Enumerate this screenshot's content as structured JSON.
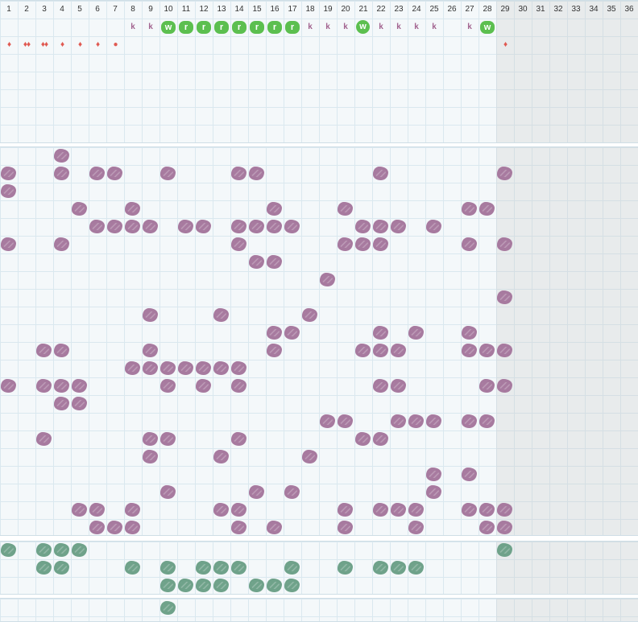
{
  "tracker": {
    "day_labels": [
      "1",
      "2",
      "3",
      "4",
      "5",
      "6",
      "7",
      "8",
      "9",
      "10",
      "11",
      "12",
      "13",
      "14",
      "15",
      "16",
      "17",
      "18",
      "19",
      "20",
      "21",
      "22",
      "23",
      "24",
      "25",
      "26",
      "27",
      "28",
      "29",
      "30",
      "31",
      "32",
      "33",
      "34",
      "35",
      "36"
    ],
    "current_day": 29,
    "marker_colors": {
      "symptom_purple": "#a77a9f",
      "habit_green": "#6fa28a",
      "flow_red": "#e05a52",
      "pill_green": "#5cbf4f",
      "k_text": "#a2638f"
    },
    "letter_row": [
      {
        "day": 8,
        "text": "k",
        "style": "k"
      },
      {
        "day": 9,
        "text": "k",
        "style": "k"
      },
      {
        "day": 10,
        "text": "w",
        "style": "pill"
      },
      {
        "day": 11,
        "text": "r",
        "style": "pill"
      },
      {
        "day": 12,
        "text": "r",
        "style": "pill"
      },
      {
        "day": 13,
        "text": "r",
        "style": "pill"
      },
      {
        "day": 14,
        "text": "r",
        "style": "pill"
      },
      {
        "day": 15,
        "text": "r",
        "style": "pill"
      },
      {
        "day": 16,
        "text": "r",
        "style": "pill"
      },
      {
        "day": 17,
        "text": "r",
        "style": "pill"
      },
      {
        "day": 18,
        "text": "k",
        "style": "k"
      },
      {
        "day": 19,
        "text": "k",
        "style": "k"
      },
      {
        "day": 20,
        "text": "k",
        "style": "k"
      },
      {
        "day": 21,
        "text": "w",
        "style": "pill-round"
      },
      {
        "day": 22,
        "text": "k",
        "style": "k"
      },
      {
        "day": 23,
        "text": "k",
        "style": "k"
      },
      {
        "day": 24,
        "text": "k",
        "style": "k"
      },
      {
        "day": 25,
        "text": "k",
        "style": "k"
      },
      {
        "day": 27,
        "text": "k",
        "style": "k"
      },
      {
        "day": 28,
        "text": "w",
        "style": "pill"
      }
    ],
    "flow_row": [
      {
        "day": 1,
        "text": "♦"
      },
      {
        "day": 2,
        "text": "♦♦"
      },
      {
        "day": 3,
        "text": "♦♦"
      },
      {
        "day": 4,
        "text": "♦"
      },
      {
        "day": 5,
        "text": "♦"
      },
      {
        "day": 6,
        "text": "♦"
      },
      {
        "day": 7,
        "text": "●"
      },
      {
        "day": 29,
        "text": "♦"
      }
    ],
    "symptom_rows": [
      [
        4
      ],
      [
        1,
        4,
        6,
        7,
        10,
        14,
        15,
        22,
        29
      ],
      [
        1
      ],
      [
        5,
        8,
        16,
        20,
        27,
        28
      ],
      [
        6,
        7,
        8,
        9,
        11,
        12,
        14,
        15,
        16,
        17,
        21,
        22,
        23,
        25
      ],
      [
        1,
        4,
        14,
        20,
        21,
        22,
        27,
        29
      ],
      [
        15,
        16
      ],
      [
        19
      ],
      [
        29
      ],
      [
        9,
        13,
        18
      ],
      [
        16,
        17,
        22,
        24,
        27
      ],
      [
        3,
        4,
        9,
        16,
        21,
        22,
        23,
        27,
        28,
        29
      ],
      [
        8,
        9,
        10,
        11,
        12,
        13,
        14
      ],
      [
        1,
        3,
        4,
        5,
        10,
        12,
        14,
        22,
        23,
        28,
        29
      ],
      [
        4,
        5
      ],
      [
        19,
        20,
        23,
        24,
        25,
        27,
        28
      ],
      [
        3,
        9,
        10,
        14,
        21,
        22
      ],
      [
        9,
        13,
        18
      ],
      [
        25,
        27
      ],
      [
        10,
        15,
        17,
        25
      ],
      [
        5,
        6,
        8,
        13,
        14,
        20,
        22,
        23,
        24,
        27,
        28,
        29
      ],
      [
        6,
        7,
        8,
        14,
        16,
        20,
        24,
        28,
        29
      ]
    ],
    "habit_rows": [
      [
        1,
        3,
        4,
        5,
        29
      ],
      [
        3,
        4,
        8,
        10,
        12,
        13,
        14,
        17,
        20,
        22,
        23,
        24
      ],
      [
        10,
        11,
        12,
        13,
        15,
        16,
        17
      ]
    ],
    "extra_rows": [
      [
        10
      ]
    ]
  }
}
